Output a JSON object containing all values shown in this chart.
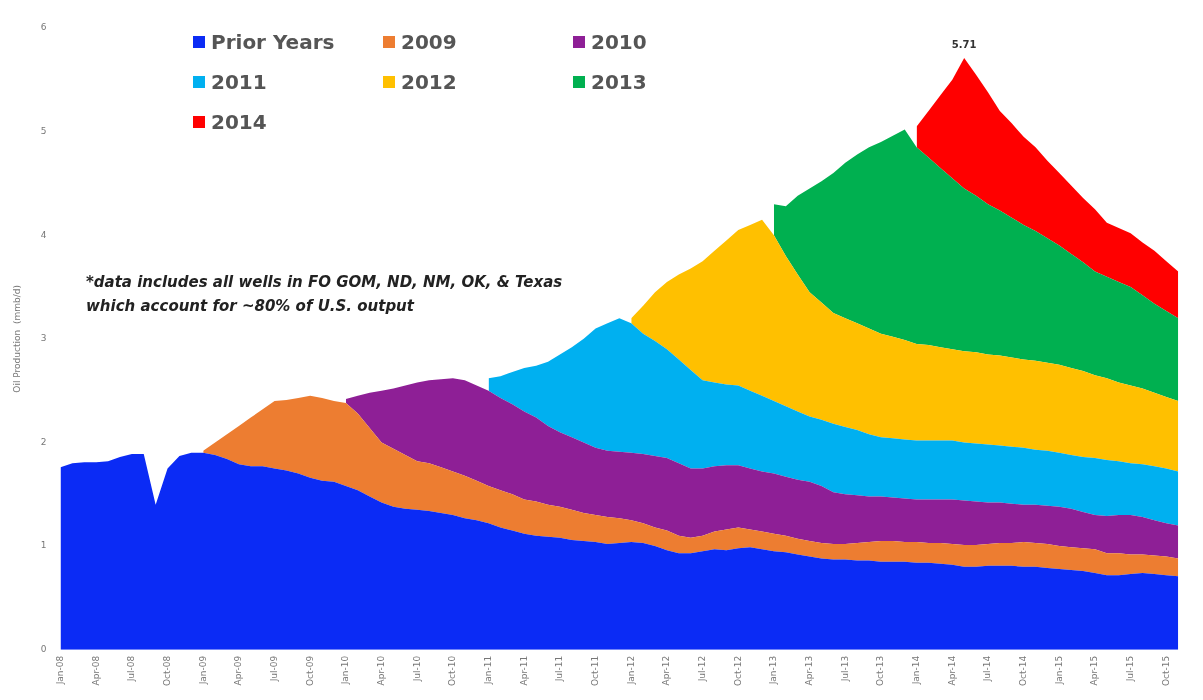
{
  "chart_data": {
    "type": "area",
    "stacked": true,
    "ylabel": "Oil Production  (mmb/d)",
    "ylim": [
      0,
      6
    ],
    "yticks": [
      0,
      1,
      2,
      3,
      4,
      5,
      6
    ],
    "grid": false,
    "legend": "top left",
    "categories": [
      "Jan-08",
      null,
      null,
      "Apr-08",
      null,
      null,
      "Jul-08",
      null,
      null,
      "Oct-08",
      null,
      null,
      "Jan-09",
      null,
      null,
      "Apr-09",
      null,
      null,
      "Jul-09",
      null,
      null,
      "Oct-09",
      null,
      null,
      "Jan-10",
      null,
      null,
      "Apr-10",
      null,
      null,
      "Jul-10",
      null,
      null,
      "Oct-10",
      null,
      null,
      "Jan-11",
      null,
      null,
      "Apr-11",
      null,
      null,
      "Jul-11",
      null,
      null,
      "Oct-11",
      null,
      null,
      "Jan-12",
      null,
      null,
      "Apr-12",
      null,
      null,
      "Jul-12",
      null,
      null,
      "Oct-12",
      null,
      null,
      "Jan-13",
      null,
      null,
      "Apr-13",
      null,
      null,
      "Jul-13",
      null,
      null,
      "Oct-13",
      null,
      null,
      "Jan-14",
      null,
      null,
      "Apr-14",
      null,
      null,
      "Jul-14",
      null,
      null,
      "Oct-14",
      null,
      null,
      "Jan-15",
      null,
      null,
      "Apr-15",
      null,
      null,
      "Jul-15",
      null,
      null,
      "Oct-15",
      null
    ],
    "series": [
      {
        "name": "Prior Years",
        "color": "#0b2bf5",
        "values": [
          1.76,
          1.8,
          1.81,
          1.81,
          1.82,
          1.86,
          1.89,
          1.89,
          1.4,
          1.75,
          1.87,
          1.9,
          1.9,
          1.88,
          1.84,
          1.79,
          1.77,
          1.77,
          1.75,
          1.73,
          1.7,
          1.66,
          1.63,
          1.62,
          1.58,
          1.54,
          1.48,
          1.42,
          1.38,
          1.36,
          1.35,
          1.34,
          1.32,
          1.3,
          1.27,
          1.25,
          1.22,
          1.18,
          1.15,
          1.12,
          1.1,
          1.09,
          1.08,
          1.06,
          1.05,
          1.04,
          1.02,
          1.03,
          1.04,
          1.03,
          1.0,
          0.96,
          0.93,
          0.93,
          0.95,
          0.97,
          0.96,
          0.98,
          0.99,
          0.97,
          0.95,
          0.94,
          0.92,
          0.9,
          0.88,
          0.87,
          0.87,
          0.86,
          0.86,
          0.85,
          0.85,
          0.85,
          0.84,
          0.84,
          0.83,
          0.82,
          0.8,
          0.8,
          0.81,
          0.81,
          0.81,
          0.8,
          0.8,
          0.79,
          0.78,
          0.77,
          0.76,
          0.74,
          0.72,
          0.72,
          0.73,
          0.74,
          0.73,
          0.72,
          0.71
        ]
      },
      {
        "name": "2009",
        "color": "#ed7d31",
        "values": [
          null,
          null,
          null,
          null,
          null,
          null,
          null,
          null,
          null,
          null,
          null,
          null,
          0.02,
          0.12,
          0.24,
          0.37,
          0.47,
          0.55,
          0.65,
          0.68,
          0.73,
          0.79,
          0.8,
          0.78,
          0.8,
          0.74,
          0.66,
          0.58,
          0.56,
          0.52,
          0.47,
          0.46,
          0.44,
          0.42,
          0.41,
          0.38,
          0.36,
          0.36,
          0.35,
          0.33,
          0.33,
          0.31,
          0.3,
          0.29,
          0.27,
          0.26,
          0.26,
          0.24,
          0.21,
          0.19,
          0.18,
          0.19,
          0.17,
          0.15,
          0.15,
          0.17,
          0.2,
          0.2,
          0.17,
          0.17,
          0.17,
          0.16,
          0.15,
          0.15,
          0.15,
          0.15,
          0.15,
          0.17,
          0.18,
          0.2,
          0.2,
          0.19,
          0.2,
          0.19,
          0.2,
          0.2,
          0.21,
          0.21,
          0.21,
          0.22,
          0.22,
          0.24,
          0.23,
          0.23,
          0.22,
          0.22,
          0.22,
          0.23,
          0.21,
          0.21,
          0.19,
          0.18,
          0.18,
          0.18,
          0.17
        ]
      },
      {
        "name": "2010",
        "color": "#8e1f96",
        "values": [
          null,
          null,
          null,
          null,
          null,
          null,
          null,
          null,
          null,
          null,
          null,
          null,
          null,
          null,
          null,
          null,
          null,
          null,
          null,
          null,
          null,
          null,
          null,
          null,
          0.04,
          0.17,
          0.34,
          0.5,
          0.58,
          0.67,
          0.76,
          0.8,
          0.85,
          0.9,
          0.92,
          0.92,
          0.92,
          0.89,
          0.87,
          0.85,
          0.81,
          0.76,
          0.72,
          0.7,
          0.68,
          0.65,
          0.64,
          0.64,
          0.65,
          0.67,
          0.69,
          0.7,
          0.7,
          0.67,
          0.65,
          0.63,
          0.62,
          0.6,
          0.59,
          0.58,
          0.58,
          0.57,
          0.57,
          0.57,
          0.55,
          0.5,
          0.48,
          0.46,
          0.44,
          0.43,
          0.42,
          0.42,
          0.41,
          0.42,
          0.42,
          0.43,
          0.43,
          0.42,
          0.4,
          0.39,
          0.38,
          0.36,
          0.37,
          0.37,
          0.38,
          0.37,
          0.35,
          0.33,
          0.36,
          0.37,
          0.38,
          0.36,
          0.34,
          0.32,
          0.32
        ]
      },
      {
        "name": "2011",
        "color": "#00b0f0",
        "values": [
          null,
          null,
          null,
          null,
          null,
          null,
          null,
          null,
          null,
          null,
          null,
          null,
          null,
          null,
          null,
          null,
          null,
          null,
          null,
          null,
          null,
          null,
          null,
          null,
          null,
          null,
          null,
          null,
          null,
          null,
          null,
          null,
          null,
          null,
          null,
          null,
          0.12,
          0.21,
          0.31,
          0.42,
          0.5,
          0.62,
          0.75,
          0.87,
          1.0,
          1.15,
          1.23,
          1.29,
          1.25,
          1.16,
          1.11,
          1.05,
          1.0,
          0.95,
          0.85,
          0.81,
          0.78,
          0.77,
          0.75,
          0.73,
          0.7,
          0.68,
          0.66,
          0.63,
          0.64,
          0.66,
          0.65,
          0.63,
          0.6,
          0.57,
          0.57,
          0.57,
          0.57,
          0.57,
          0.57,
          0.57,
          0.56,
          0.56,
          0.56,
          0.55,
          0.55,
          0.55,
          0.53,
          0.53,
          0.52,
          0.52,
          0.53,
          0.55,
          0.54,
          0.52,
          0.5,
          0.51,
          0.52,
          0.53,
          0.52
        ]
      },
      {
        "name": "2012",
        "color": "#ffc000",
        "values": [
          null,
          null,
          null,
          null,
          null,
          null,
          null,
          null,
          null,
          null,
          null,
          null,
          null,
          null,
          null,
          null,
          null,
          null,
          null,
          null,
          null,
          null,
          null,
          null,
          null,
          null,
          null,
          null,
          null,
          null,
          null,
          null,
          null,
          null,
          null,
          null,
          null,
          null,
          null,
          null,
          null,
          null,
          null,
          null,
          null,
          null,
          null,
          null,
          0.05,
          0.27,
          0.47,
          0.65,
          0.82,
          0.98,
          1.15,
          1.27,
          1.39,
          1.5,
          1.6,
          1.7,
          1.6,
          1.45,
          1.32,
          1.2,
          1.13,
          1.07,
          1.05,
          1.03,
          1.02,
          1.0,
          0.98,
          0.96,
          0.93,
          0.92,
          0.9,
          0.88,
          0.88,
          0.88,
          0.87,
          0.87,
          0.86,
          0.85,
          0.86,
          0.85,
          0.85,
          0.84,
          0.83,
          0.8,
          0.79,
          0.76,
          0.75,
          0.73,
          0.71,
          0.69,
          0.68
        ]
      },
      {
        "name": "2013",
        "color": "#00b050",
        "values": [
          null,
          null,
          null,
          null,
          null,
          null,
          null,
          null,
          null,
          null,
          null,
          null,
          null,
          null,
          null,
          null,
          null,
          null,
          null,
          null,
          null,
          null,
          null,
          null,
          null,
          null,
          null,
          null,
          null,
          null,
          null,
          null,
          null,
          null,
          null,
          null,
          null,
          null,
          null,
          null,
          null,
          null,
          null,
          null,
          null,
          null,
          null,
          null,
          null,
          null,
          null,
          null,
          null,
          null,
          null,
          null,
          null,
          null,
          null,
          null,
          0.3,
          0.48,
          0.76,
          1.0,
          1.17,
          1.35,
          1.5,
          1.63,
          1.75,
          1.85,
          1.94,
          2.03,
          1.9,
          1.81,
          1.73,
          1.65,
          1.57,
          1.51,
          1.45,
          1.4,
          1.35,
          1.3,
          1.25,
          1.2,
          1.15,
          1.1,
          1.05,
          1.0,
          0.98,
          0.97,
          0.95,
          0.9,
          0.86,
          0.83,
          0.8
        ]
      },
      {
        "name": "2014",
        "color": "#ff0000",
        "values": [
          null,
          null,
          null,
          null,
          null,
          null,
          null,
          null,
          null,
          null,
          null,
          null,
          null,
          null,
          null,
          null,
          null,
          null,
          null,
          null,
          null,
          null,
          null,
          null,
          null,
          null,
          null,
          null,
          null,
          null,
          null,
          null,
          null,
          null,
          null,
          null,
          null,
          null,
          null,
          null,
          null,
          null,
          null,
          null,
          null,
          null,
          null,
          null,
          null,
          null,
          null,
          null,
          null,
          null,
          null,
          null,
          null,
          null,
          null,
          null,
          null,
          null,
          null,
          null,
          null,
          null,
          null,
          null,
          null,
          null,
          null,
          null,
          0.2,
          0.45,
          0.7,
          0.95,
          1.26,
          1.17,
          1.08,
          0.96,
          0.91,
          0.85,
          0.81,
          0.75,
          0.7,
          0.66,
          0.62,
          0.6,
          0.52,
          0.52,
          0.52,
          0.51,
          0.51,
          0.48,
          0.45
        ]
      }
    ],
    "annotations": [
      {
        "text": "5.71",
        "y": 5.71
      },
      "*data includes  all wells in FO GOM, ND, NM, OK, & Texas which account for ~80% of U.S. output"
    ]
  }
}
